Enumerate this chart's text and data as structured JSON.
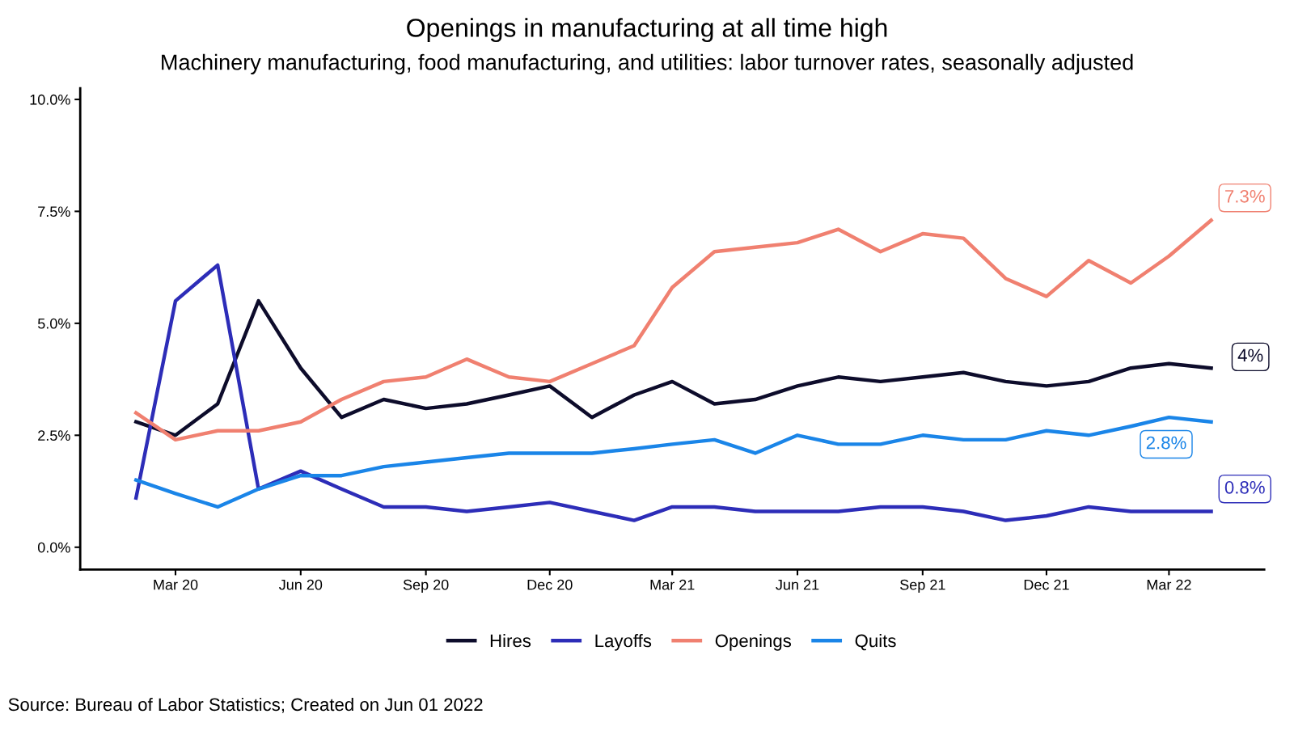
{
  "chart_data": {
    "type": "line",
    "title": "Openings in manufacturing at all time high",
    "subtitle": "Machinery manufacturing, food manufacturing, and utilities: labor turnover rates, seasonally adjusted",
    "x": [
      "2020-02",
      "2020-03",
      "2020-04",
      "2020-05",
      "2020-06",
      "2020-07",
      "2020-08",
      "2020-09",
      "2020-10",
      "2020-11",
      "2020-12",
      "2021-01",
      "2021-02",
      "2021-03",
      "2021-04",
      "2021-05",
      "2021-06",
      "2021-07",
      "2021-08",
      "2021-09",
      "2021-10",
      "2021-11",
      "2021-12",
      "2022-01",
      "2022-02",
      "2022-03",
      "2022-04"
    ],
    "series": [
      {
        "name": "Hires",
        "color": "#0d0c2b",
        "values": [
          2.8,
          2.5,
          3.2,
          5.5,
          4.0,
          2.9,
          3.3,
          3.1,
          3.2,
          3.4,
          3.6,
          2.9,
          3.4,
          3.7,
          3.2,
          3.3,
          3.6,
          3.8,
          3.7,
          3.8,
          3.9,
          3.7,
          3.6,
          3.7,
          4.0,
          4.1,
          4.0
        ]
      },
      {
        "name": "Layoffs",
        "color": "#2d2db8",
        "values": [
          1.1,
          5.5,
          6.3,
          1.3,
          1.7,
          1.3,
          0.9,
          0.9,
          0.8,
          0.9,
          1.0,
          0.8,
          0.6,
          0.9,
          0.9,
          0.8,
          0.8,
          0.8,
          0.9,
          0.9,
          0.8,
          0.6,
          0.7,
          0.9,
          0.8,
          0.8,
          0.8
        ]
      },
      {
        "name": "Openings",
        "color": "#f08070",
        "values": [
          3.0,
          2.4,
          2.6,
          2.6,
          2.8,
          3.3,
          3.7,
          3.8,
          4.2,
          3.8,
          3.7,
          4.1,
          4.5,
          5.8,
          6.6,
          6.7,
          6.8,
          7.1,
          6.6,
          7.0,
          6.9,
          6.0,
          5.6,
          6.4,
          5.9,
          6.5,
          7.3
        ]
      },
      {
        "name": "Quits",
        "color": "#1a85e8",
        "values": [
          1.5,
          1.2,
          0.9,
          1.3,
          1.6,
          1.6,
          1.8,
          1.9,
          2.0,
          2.1,
          2.1,
          2.1,
          2.2,
          2.3,
          2.4,
          2.1,
          2.5,
          2.3,
          2.3,
          2.5,
          2.4,
          2.4,
          2.6,
          2.5,
          2.7,
          2.9,
          2.8
        ]
      }
    ],
    "xlim": [
      "2019-12-22",
      "2022-05-10"
    ],
    "xticks": [
      {
        "value": "2020-03-01",
        "label": "Mar 20"
      },
      {
        "value": "2020-06-01",
        "label": "Jun 20"
      },
      {
        "value": "2020-09-01",
        "label": "Sep 20"
      },
      {
        "value": "2020-12-01",
        "label": "Dec 20"
      },
      {
        "value": "2021-03-01",
        "label": "Mar 21"
      },
      {
        "value": "2021-06-01",
        "label": "Jun 21"
      },
      {
        "value": "2021-09-01",
        "label": "Sep 21"
      },
      {
        "value": "2021-12-01",
        "label": "Dec 21"
      },
      {
        "value": "2022-03-01",
        "label": "Mar 22"
      }
    ],
    "ylim": [
      -0.5,
      10.25
    ],
    "yticks": [
      {
        "value": 0,
        "label": "0.0%"
      },
      {
        "value": 2.5,
        "label": "2.5%"
      },
      {
        "value": 5,
        "label": "5.0%"
      },
      {
        "value": 7.5,
        "label": "7.5%"
      },
      {
        "value": 10,
        "label": "10.0%"
      }
    ],
    "annotations": [
      {
        "text": "7.3%",
        "x": "2022-04",
        "y": 7.3
      },
      {
        "text": "4%",
        "x": "2022-04",
        "y": 4.0
      },
      {
        "text": "2.8%",
        "x": "2022-04",
        "y": 2.8
      },
      {
        "text": "0.8%",
        "x": "2022-04",
        "y": 0.8
      },
      "Source: Bureau of Labor Statistics; Created on Jun 01 2022"
    ],
    "grid": false,
    "legend": "bottom",
    "marker": "none",
    "line_style": "solid"
  }
}
